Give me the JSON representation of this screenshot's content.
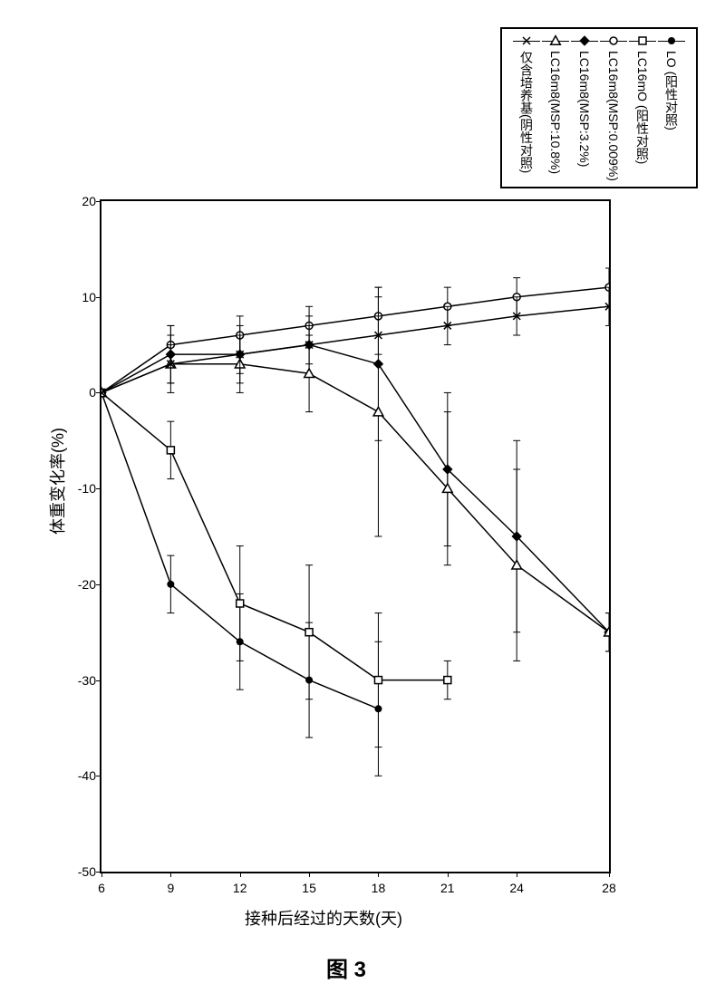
{
  "chart": {
    "type": "line",
    "xlabel": "接种后经过的天数(天)",
    "ylabel": "体重变化率(%)",
    "caption": "图 3",
    "xlim": [
      6,
      28
    ],
    "ylim": [
      -50,
      20
    ],
    "x_ticks": [
      6,
      9,
      12,
      15,
      18,
      21,
      24,
      28
    ],
    "y_ticks": [
      20,
      10,
      0,
      -10,
      -20,
      -30,
      -40,
      -50
    ],
    "grid_y_baseline": 0,
    "background_color": "#ffffff",
    "axis_color": "#000000",
    "line_color": "#000000",
    "line_width": 1.5,
    "marker_size": 8,
    "series": [
      {
        "label": "LO (阳性对照)",
        "marker": "filled-circle",
        "x": [
          6,
          9,
          12,
          15,
          18
        ],
        "y": [
          0,
          -20,
          -26,
          -30,
          -33
        ],
        "err": [
          0,
          3,
          5,
          6,
          7
        ]
      },
      {
        "label": "LC16mO (阳性对照)",
        "marker": "open-square",
        "x": [
          6,
          9,
          12,
          15,
          18,
          21
        ],
        "y": [
          0,
          -6,
          -22,
          -25,
          -30,
          -30
        ],
        "err": [
          0,
          3,
          6,
          7,
          7,
          2
        ]
      },
      {
        "label": "LC16m8(MSP:0.009%)",
        "marker": "open-circle",
        "x": [
          6,
          9,
          12,
          15,
          18,
          21,
          24,
          28
        ],
        "y": [
          0,
          5,
          6,
          7,
          8,
          9,
          10,
          11
        ],
        "err": [
          0,
          2,
          2,
          2,
          2,
          2,
          2,
          2
        ]
      },
      {
        "label": "LC16m8(MSP:3.2%)",
        "marker": "filled-diamond",
        "x": [
          6,
          9,
          12,
          15,
          18,
          21,
          24,
          28
        ],
        "y": [
          0,
          4,
          4,
          5,
          3,
          -8,
          -15,
          -25
        ],
        "err": [
          0,
          3,
          3,
          3,
          8,
          8,
          10,
          2
        ]
      },
      {
        "label": "LC16m8(MSP:10.8%)",
        "marker": "open-triangle",
        "x": [
          6,
          9,
          12,
          15,
          18,
          21,
          24,
          28
        ],
        "y": [
          0,
          3,
          3,
          2,
          -2,
          -10,
          -18,
          -25
        ],
        "err": [
          0,
          3,
          3,
          4,
          13,
          8,
          10,
          2
        ]
      },
      {
        "label": "仅含培养基(阴性对照)",
        "marker": "x",
        "x": [
          6,
          9,
          12,
          15,
          18,
          21,
          24,
          28
        ],
        "y": [
          0,
          3,
          4,
          5,
          6,
          7,
          8,
          9
        ],
        "err": [
          0,
          2,
          2,
          2,
          2,
          2,
          2,
          2
        ]
      }
    ]
  }
}
